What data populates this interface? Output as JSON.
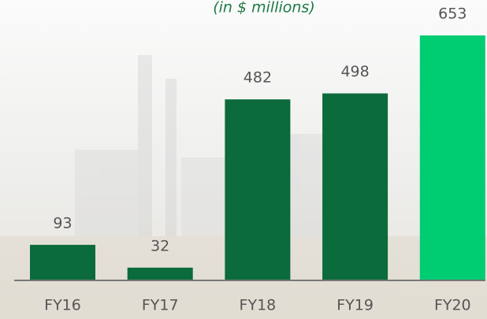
{
  "chart_data": {
    "type": "bar",
    "subtitle": "(in $ millions)",
    "categories": [
      "FY16",
      "FY17",
      "FY18",
      "FY19",
      "FY20"
    ],
    "values": [
      93,
      32,
      482,
      498,
      653
    ],
    "colors": [
      "#0b6b3a",
      "#0b6b3a",
      "#0b6b3a",
      "#0b6b3a",
      "#00cc72"
    ]
  }
}
